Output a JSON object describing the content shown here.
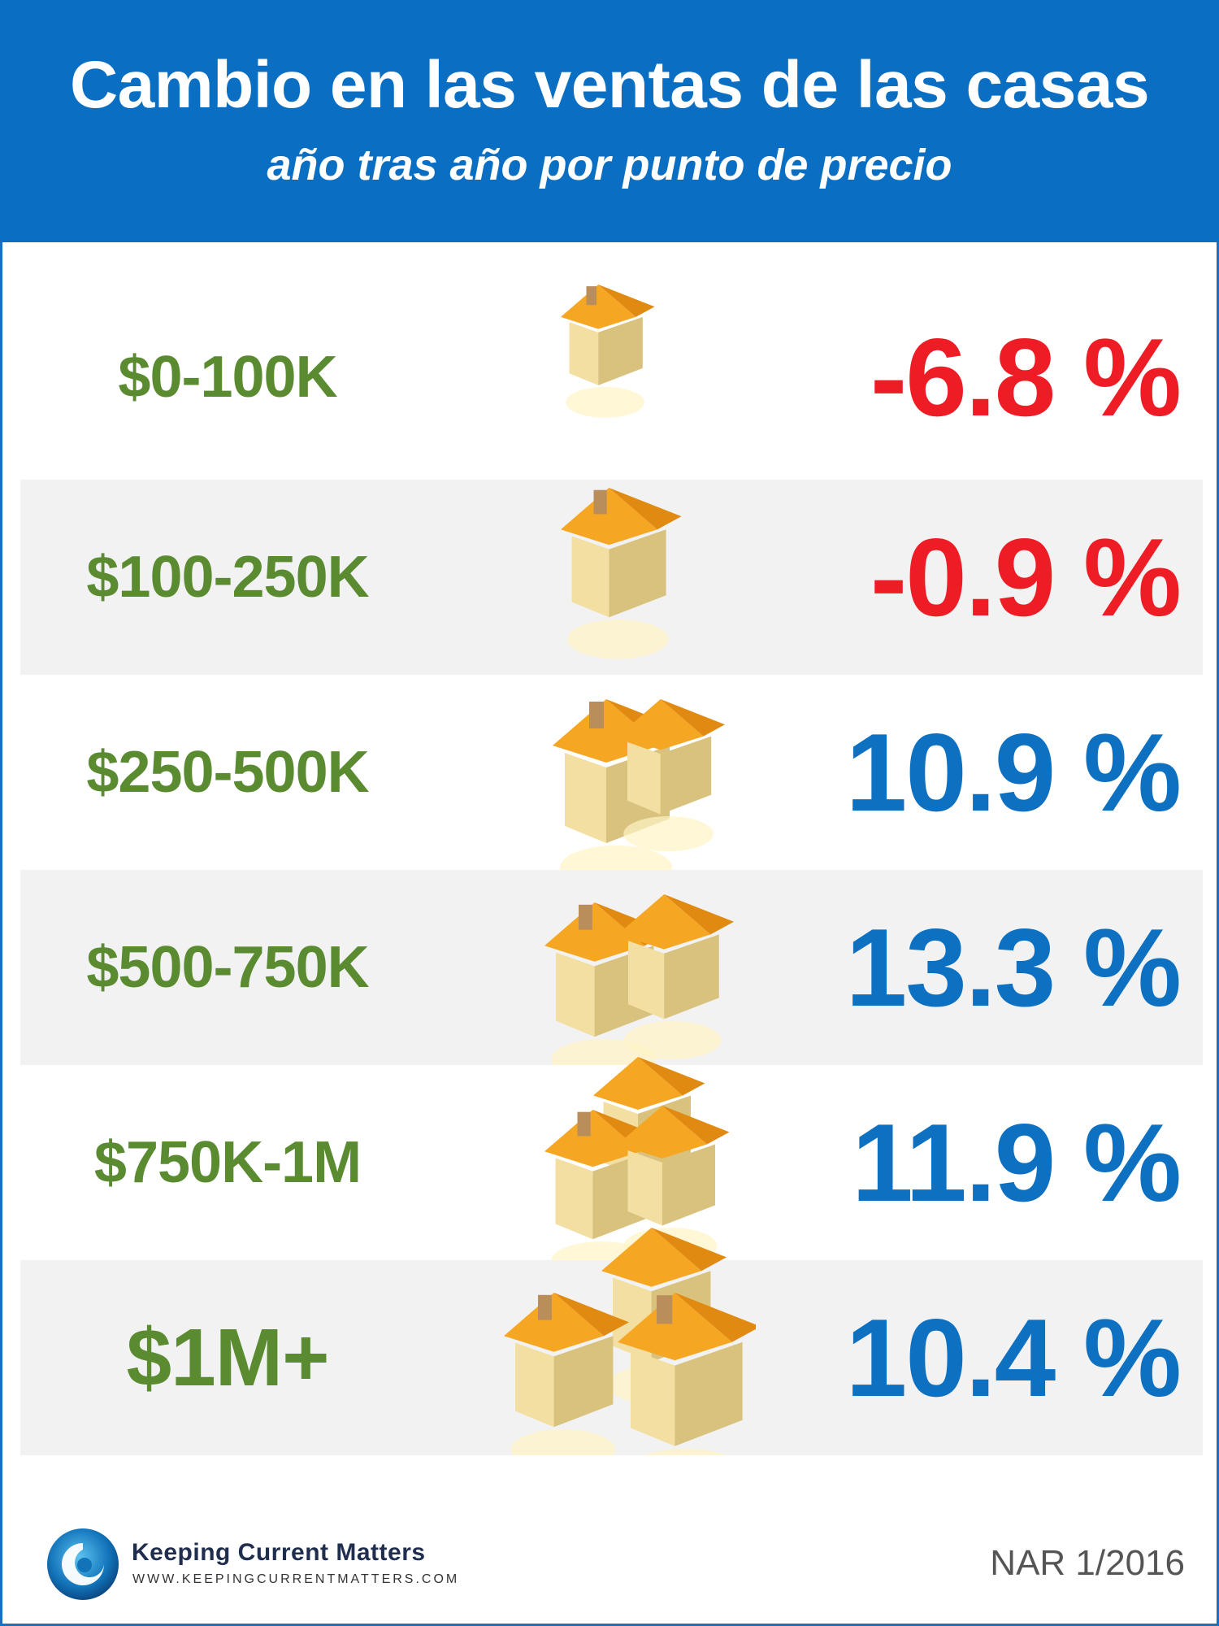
{
  "header": {
    "title": "Cambio en las ventas de las casas",
    "subtitle": "año tras año por punto de precio"
  },
  "chart_data": {
    "type": "table",
    "title": "Cambio en las ventas de las casas",
    "subtitle": "año tras año por punto de precio",
    "categories": [
      "$0-100K",
      "$100-250K",
      "$250-500K",
      "$500-750K",
      "$750K-1M",
      "$1M+"
    ],
    "values": [
      -6.8,
      -0.9,
      10.9,
      13.3,
      11.9,
      10.4
    ],
    "unit": "%",
    "rows": [
      {
        "range": "$0-100K",
        "change": "-6.8 %",
        "value": -6.8,
        "houses": "single-small-house-icon"
      },
      {
        "range": "$100-250K",
        "change": "-0.9 %",
        "value": -0.9,
        "houses": "single-house-icon"
      },
      {
        "range": "$250-500K",
        "change": "10.9 %",
        "value": 10.9,
        "houses": "double-gable-house-icon"
      },
      {
        "range": "$500-750K",
        "change": "13.3 %",
        "value": 13.3,
        "houses": "large-house-icon"
      },
      {
        "range": "$750K-1M",
        "change": "11.9 %",
        "value": 11.9,
        "houses": "mansion-house-icon"
      },
      {
        "range": "$1M+",
        "change": "10.4 %",
        "value": 10.4,
        "houses": "house-cluster-icon"
      }
    ],
    "colors": {
      "range_text": "#5a8b31",
      "negative": "#ee1c25",
      "positive": "#0d70c1",
      "header_bg": "#0a6fc2",
      "band_bg": "#f2f2f2",
      "roof": "#f5a623",
      "wall": "#f3dfa2"
    }
  },
  "footer": {
    "brand": "Keeping Current Matters",
    "url": "WWW.KEEPINGCURRENTMATTERS.COM",
    "source": "NAR 1/2016"
  }
}
